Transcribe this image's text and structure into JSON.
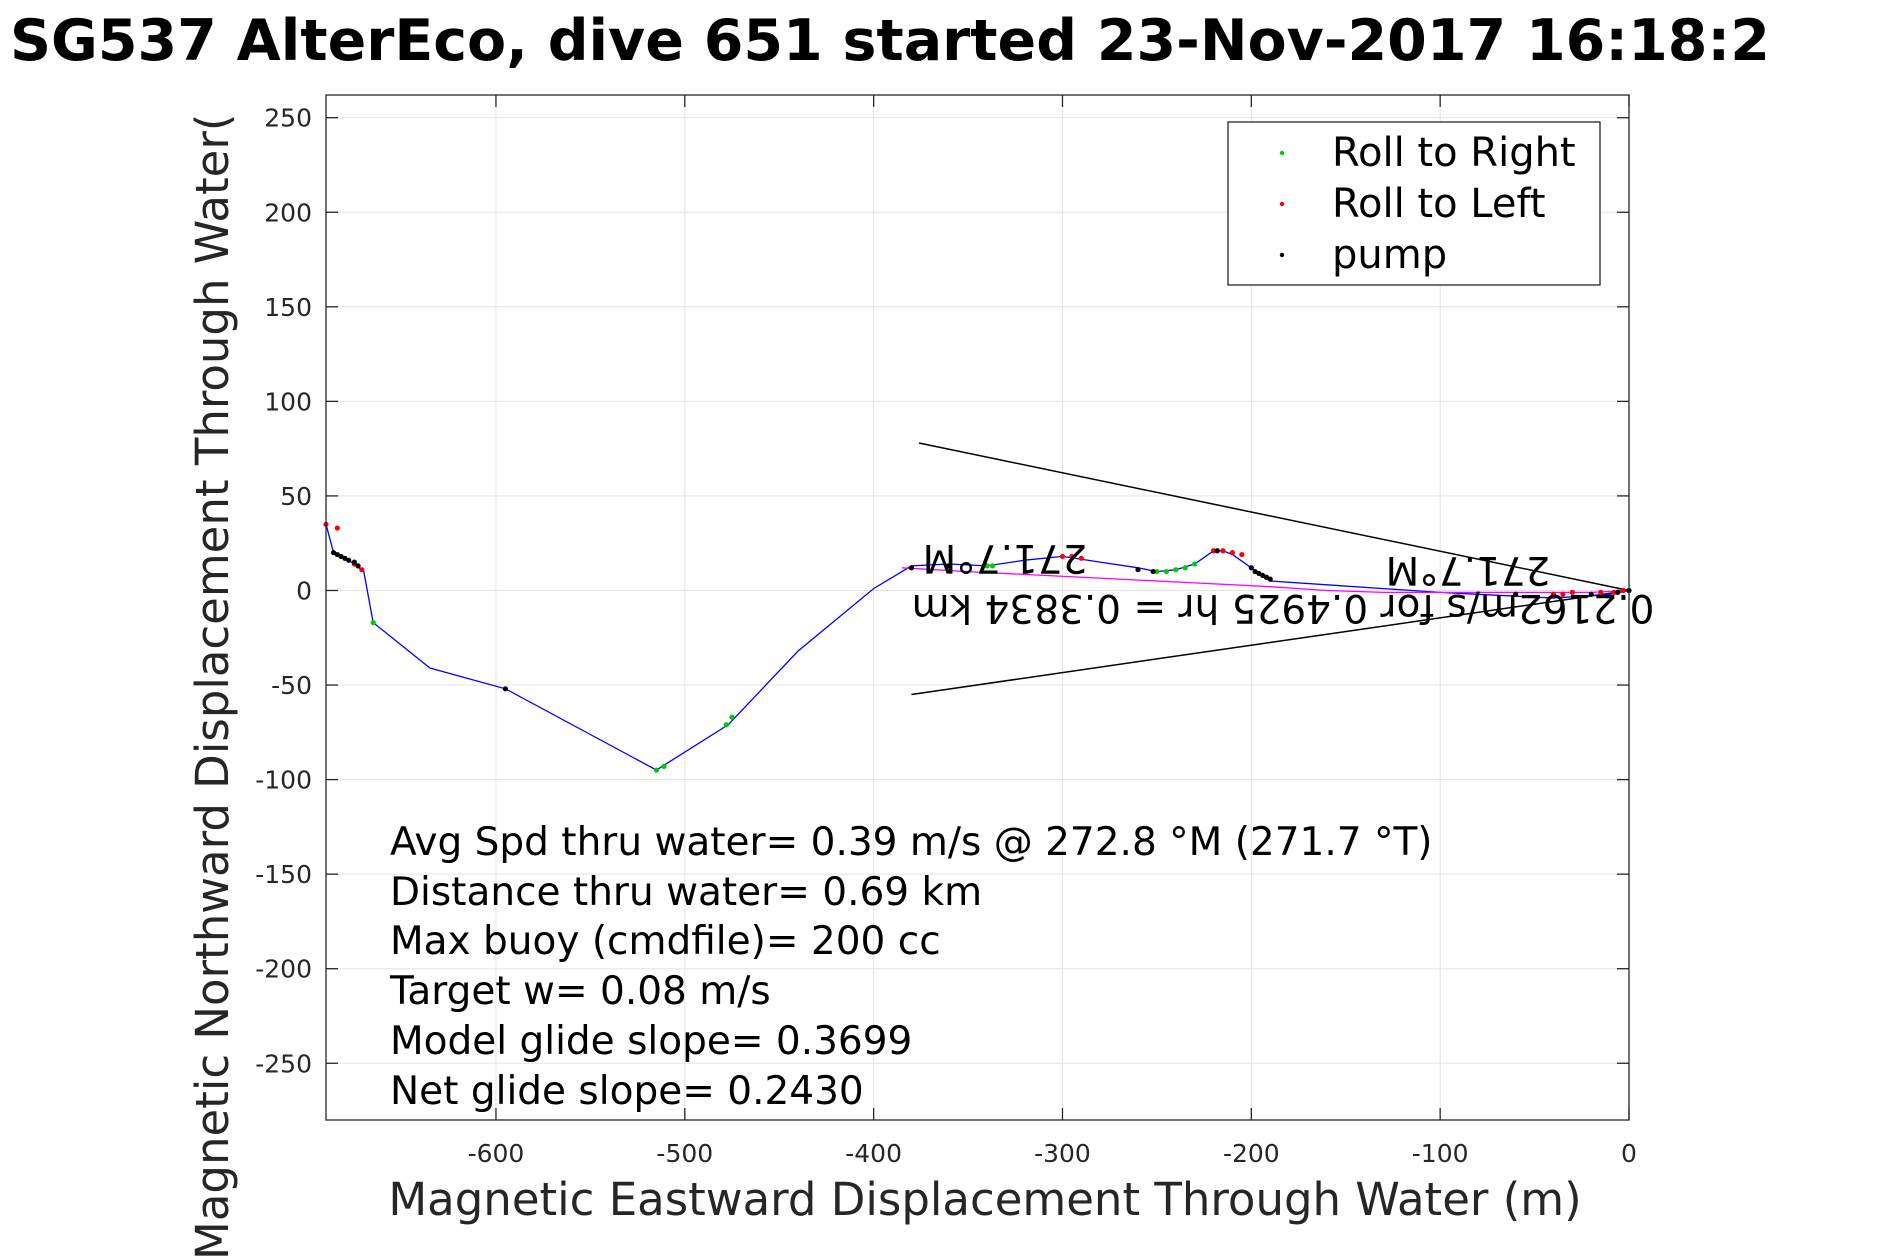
{
  "chart_data": {
    "type": "line",
    "title": "SG537 AlterEco, dive 651 started 23-Nov-2017 16:18:2",
    "xlabel": "Magnetic Eastward Displacement Through Water (m)",
    "ylabel": "Magnetic Northward Displacement Through Water(",
    "xlim": [
      -690,
      0
    ],
    "ylim": [
      -280,
      262
    ],
    "xticks": [
      -600,
      -500,
      -400,
      -300,
      -200,
      -100,
      0
    ],
    "yticks": [
      250,
      200,
      150,
      100,
      50,
      0,
      -50,
      -100,
      -150,
      -200,
      -250
    ],
    "xtick_labels": [
      "-600",
      "-500",
      "-400",
      "-300",
      "-200",
      "-100",
      "0"
    ],
    "ytick_labels": [
      "250",
      "200",
      "150",
      "100",
      "50",
      "0",
      "-50",
      "-100",
      "-150",
      "-200",
      "-250"
    ],
    "grid": true,
    "legend_position": "top-right",
    "legend": [
      {
        "label": "Roll to Right",
        "color": "#00cc00"
      },
      {
        "label": "Roll to Left",
        "color": "#ff0000"
      },
      {
        "label": "pump",
        "color": "#000000"
      }
    ],
    "series": [
      {
        "name": "",
        "color": "#0000ff",
        "x": [
          0,
          -10,
          -25,
          -40,
          -60,
          -80,
          -100,
          -130,
          -160,
          -190,
          -200,
          -210,
          -215,
          -220,
          -230,
          -240,
          -250,
          -260,
          -280,
          -300,
          -320,
          -340,
          -360,
          -380,
          -400,
          -440,
          -477,
          -512,
          -515,
          -595,
          -635,
          -665,
          -670,
          -675,
          -680,
          -686,
          -690
        ],
        "y": [
          0,
          -2,
          -3,
          -4,
          -3,
          -2,
          -1,
          1,
          3,
          5,
          12,
          19,
          21,
          21,
          14,
          11,
          10,
          12,
          15,
          18,
          16,
          13,
          14,
          13,
          1,
          -32,
          -71,
          -93,
          -95,
          -52,
          -41,
          -17,
          10,
          14,
          17,
          20,
          35
        ]
      },
      {
        "name": "",
        "color": "#ff00ff",
        "x": [
          0,
          -20,
          -40,
          -60,
          -80,
          -100,
          -130,
          -160,
          -190,
          -230,
          -270,
          -310,
          -350,
          -385
        ],
        "y": [
          0,
          -1,
          -1,
          -1,
          -1,
          -1,
          -1,
          0,
          2,
          4,
          6,
          8,
          10,
          12
        ]
      }
    ],
    "markers": {
      "roll_right": {
        "x": [
          -515,
          -511,
          -478,
          -475,
          -665,
          -340,
          -337,
          -250,
          -245,
          -240,
          -235,
          -230
        ],
        "y": [
          -95,
          -93,
          -71,
          -67,
          -17,
          13,
          13,
          10,
          10,
          11,
          12,
          14
        ]
      },
      "roll_left": {
        "x": [
          -690,
          -684,
          -675,
          -671,
          -300,
          -295,
          -290,
          -220,
          -215,
          -210,
          -205,
          -40,
          -35,
          -30,
          -15,
          -8,
          -3
        ],
        "y": [
          35,
          33,
          14,
          11,
          18,
          18,
          17,
          21,
          21,
          20,
          19,
          -2,
          -2,
          -1,
          -1,
          -1,
          0
        ]
      },
      "pump": {
        "x": [
          -686,
          -684,
          -682,
          -680,
          -678,
          -675,
          -673,
          -595,
          -380,
          -360,
          -260,
          -252,
          -218,
          -200,
          -198,
          -196,
          -194,
          -192,
          -190,
          -60,
          -20,
          -6,
          0
        ],
        "y": [
          20,
          19,
          18,
          17,
          16,
          15,
          13,
          -52,
          12,
          13,
          11,
          10,
          21,
          12,
          10,
          9,
          8,
          7,
          6,
          -2,
          -2,
          -1,
          0
        ]
      }
    },
    "cone_lines": [
      {
        "x": [
          0,
          -376
        ],
        "y": [
          0,
          78
        ]
      },
      {
        "x": [
          0,
          -380
        ],
        "y": [
          0,
          -55
        ]
      }
    ],
    "annotations": {
      "stats": [
        "Avg Spd thru water=  0.39 m/s @ 272.8 °M (271.7 °T)",
        "Distance thru water=  0.69 km",
        "Max buoy (cmdfile)= 200 cc",
        "Target w= 0.08 m/s",
        "Model glide slope= 0.3699",
        "Net glide slope= 0.2430"
      ],
      "flipped": [
        "271.7°M",
        "0.2162m/s for 0.4925 hr = 0.3834 km",
        "271.7°M"
      ]
    }
  }
}
